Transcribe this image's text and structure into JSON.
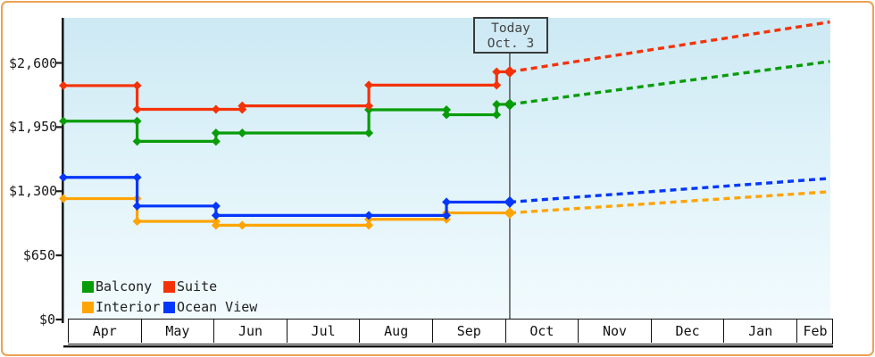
{
  "today_box": {
    "line1": "Today",
    "line2": "Oct. 3"
  },
  "legend": {
    "items": [
      {
        "label": "Balcony",
        "color": "#089c08",
        "row": 0,
        "col": 0
      },
      {
        "label": "Suite",
        "color": "#f43208",
        "row": 0,
        "col": 1
      },
      {
        "label": "Interior",
        "color": "#ffa405",
        "row": 1,
        "col": 0
      },
      {
        "label": "Ocean View",
        "color": "#0437fa",
        "row": 1,
        "col": 1
      }
    ]
  },
  "colors": {
    "frame_border": "#eba155",
    "plot_bg_top": "#cde9f4",
    "plot_bg_bottom": "#f2fbfe",
    "axis": "#1d1d1d",
    "today_line": "#4a4a4a"
  },
  "chart_data": {
    "type": "line",
    "subtype": "step price history with dotted forecast after today",
    "title": "",
    "x_axis": {
      "months": [
        "Apr",
        "May",
        "Jun",
        "Jul",
        "Aug",
        "Sep",
        "Oct",
        "Nov",
        "Dec",
        "Jan",
        "Feb"
      ]
    },
    "y_axis": {
      "ticks": [
        {
          "label": "$0",
          "value": 0
        },
        {
          "label": "$650",
          "value": 650
        },
        {
          "label": "$1,300",
          "value": 1300
        },
        {
          "label": "$1,950",
          "value": 1950
        },
        {
          "label": "$2,600",
          "value": 2600
        }
      ],
      "range": [
        0,
        2900
      ]
    },
    "today": {
      "label": "Today",
      "date": "Oct. 3",
      "month": "Oct",
      "day": 3
    },
    "legend_position": "bottom-left inside plot",
    "series": [
      {
        "name": "Interior",
        "color": "#ffa405",
        "points": [
          [
            "Apr",
            1,
            1225
          ],
          [
            "Apr",
            30,
            995
          ],
          [
            "Jun",
            2,
            955
          ],
          [
            "Jun",
            13,
            955
          ],
          [
            "Aug",
            5,
            1015
          ],
          [
            "Sep",
            7,
            1080
          ],
          [
            "Oct",
            3,
            1080
          ]
        ],
        "forecast": {
          "month": "Feb",
          "day": 15,
          "value": 1295
        }
      },
      {
        "name": "Ocean View",
        "color": "#0437fa",
        "points": [
          [
            "Apr",
            1,
            1440
          ],
          [
            "Apr",
            30,
            1150
          ],
          [
            "Jun",
            2,
            1055
          ],
          [
            "Aug",
            5,
            1055
          ],
          [
            "Sep",
            7,
            1190
          ],
          [
            "Oct",
            3,
            1190
          ]
        ],
        "forecast": {
          "month": "Feb",
          "day": 15,
          "value": 1430
        }
      },
      {
        "name": "Balcony",
        "color": "#089c08",
        "points": [
          [
            "Apr",
            1,
            2010
          ],
          [
            "Apr",
            30,
            1805
          ],
          [
            "Jun",
            2,
            1890
          ],
          [
            "Jun",
            13,
            1890
          ],
          [
            "Aug",
            5,
            2125
          ],
          [
            "Sep",
            7,
            2075
          ],
          [
            "Sep",
            28,
            2180
          ],
          [
            "Oct",
            3,
            2180
          ]
        ],
        "forecast": {
          "month": "Feb",
          "day": 15,
          "value": 2615
        }
      },
      {
        "name": "Suite",
        "color": "#f43208",
        "points": [
          [
            "Apr",
            1,
            2370
          ],
          [
            "Apr",
            30,
            2130
          ],
          [
            "Jun",
            2,
            2130
          ],
          [
            "Jun",
            13,
            2165
          ],
          [
            "Aug",
            5,
            2375
          ],
          [
            "Sep",
            28,
            2510
          ],
          [
            "Oct",
            3,
            2510
          ]
        ],
        "forecast": {
          "month": "Feb",
          "day": 15,
          "value": 3015
        }
      }
    ]
  }
}
